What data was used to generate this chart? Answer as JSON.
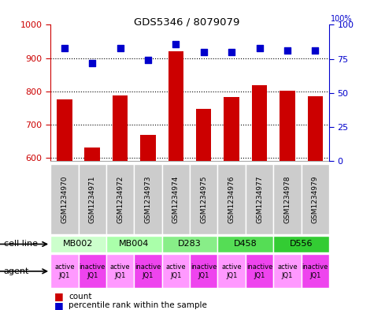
{
  "title": "GDS5346 / 8079079",
  "samples": [
    "GSM1234970",
    "GSM1234971",
    "GSM1234972",
    "GSM1234973",
    "GSM1234974",
    "GSM1234975",
    "GSM1234976",
    "GSM1234977",
    "GSM1234978",
    "GSM1234979"
  ],
  "counts": [
    775,
    632,
    787,
    670,
    920,
    748,
    784,
    818,
    801,
    786
  ],
  "percentiles": [
    83,
    72,
    83,
    74,
    86,
    80,
    80,
    83,
    81,
    81
  ],
  "ylim_left": [
    590,
    1000
  ],
  "ylim_right": [
    0,
    100
  ],
  "yticks_left": [
    600,
    700,
    800,
    900,
    1000
  ],
  "yticks_right": [
    0,
    25,
    50,
    75,
    100
  ],
  "cell_lines": [
    {
      "name": "MB002",
      "start": 0,
      "end": 2,
      "color": "#ccffcc"
    },
    {
      "name": "MB004",
      "start": 2,
      "end": 4,
      "color": "#aaffaa"
    },
    {
      "name": "D283",
      "start": 4,
      "end": 6,
      "color": "#88ee88"
    },
    {
      "name": "D458",
      "start": 6,
      "end": 8,
      "color": "#55dd55"
    },
    {
      "name": "D556",
      "start": 8,
      "end": 10,
      "color": "#33cc33"
    }
  ],
  "agents": [
    "active\nJQ1",
    "inactive\nJQ1",
    "active\nJQ1",
    "inactive\nJQ1",
    "active\nJQ1",
    "inactive\nJQ1",
    "active\nJQ1",
    "inactive\nJQ1",
    "active\nJQ1",
    "inactive\nJQ1"
  ],
  "agent_colors": [
    "#ff99ff",
    "#ee44ee",
    "#ff99ff",
    "#ee44ee",
    "#ff99ff",
    "#ee44ee",
    "#ff99ff",
    "#ee44ee",
    "#ff99ff",
    "#ee44ee"
  ],
  "bar_color": "#cc0000",
  "dot_color": "#0000cc",
  "bar_width": 0.55,
  "left_axis_color": "#cc0000",
  "right_axis_color": "#0000cc",
  "sample_box_color": "#cccccc",
  "fig_width": 4.75,
  "fig_height": 3.93,
  "fig_dpi": 100
}
